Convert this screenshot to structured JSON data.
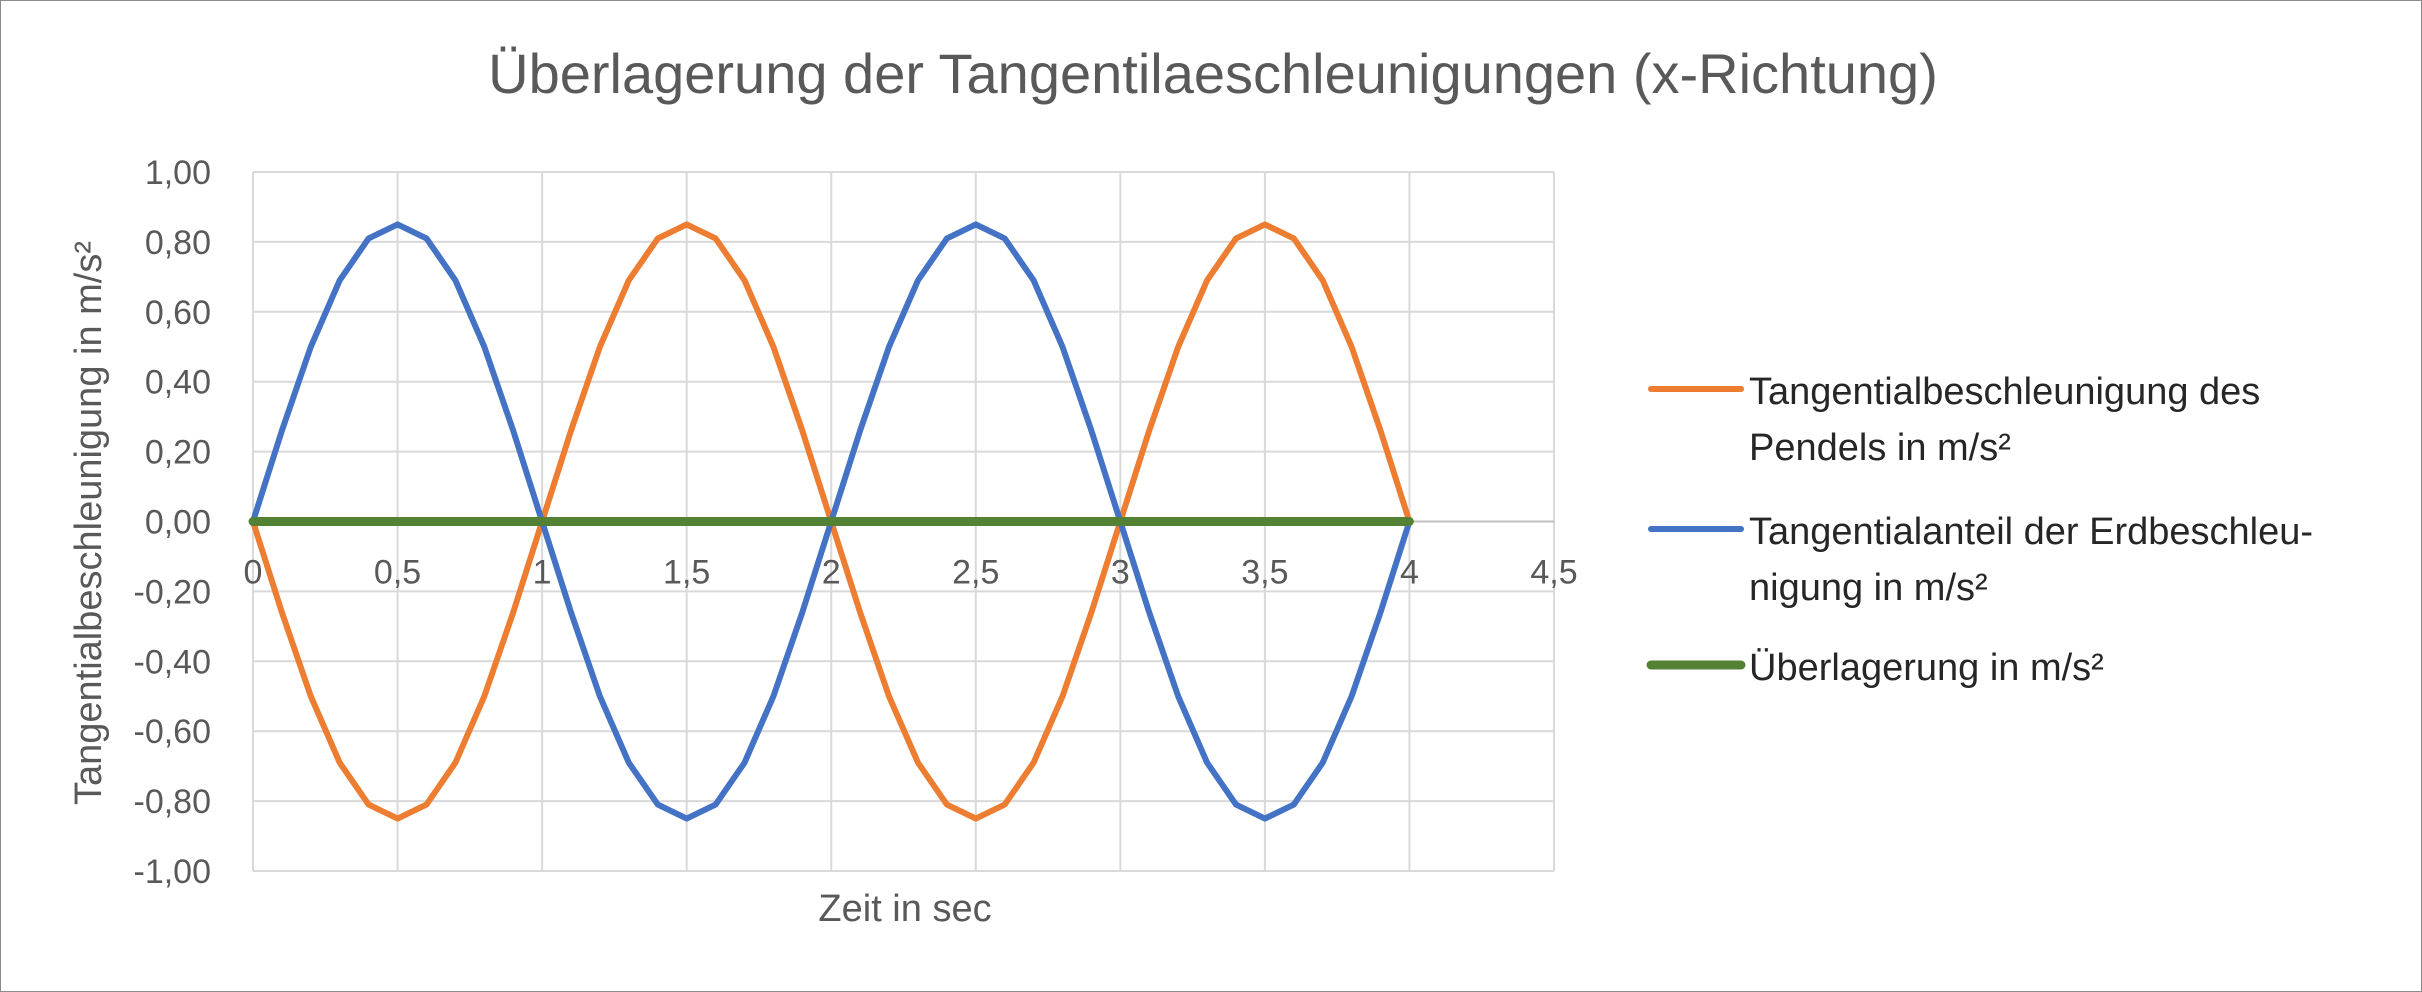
{
  "chart_data": {
    "type": "line",
    "title": "Überlagerung der Tangentilaeschleunigungen (x-Richtung)",
    "xlabel": "Zeit in sec",
    "ylabel": "Tangentialbeschleunigung in m/s²",
    "xlim": [
      0,
      4.5
    ],
    "ylim": [
      -1,
      1
    ],
    "x_ticks": [
      "0",
      "0,5",
      "1",
      "1,5",
      "2",
      "2,5",
      "3",
      "3,5",
      "4",
      "4,5"
    ],
    "y_ticks": [
      "1,00",
      "0,80",
      "0,60",
      "0,40",
      "0,20",
      "0,00",
      "-0,20",
      "-0,40",
      "-0,60",
      "-0,80",
      "-1,00"
    ],
    "grid": true,
    "legend_position": "right",
    "x": [
      0,
      0.1,
      0.2,
      0.3,
      0.4,
      0.5,
      0.6,
      0.7,
      0.8,
      0.9,
      1.0,
      1.1,
      1.2,
      1.3,
      1.4,
      1.5,
      1.6,
      1.7,
      1.8,
      1.9,
      2.0,
      2.1,
      2.2,
      2.3,
      2.4,
      2.5,
      2.6,
      2.7,
      2.8,
      2.9,
      3.0,
      3.1,
      3.2,
      3.3,
      3.4,
      3.5,
      3.6,
      3.7,
      3.8,
      3.9,
      4.0
    ],
    "series": [
      {
        "name_lines": [
          "Tangentialbeschleunigung des",
          "Pendels in m/s²"
        ],
        "color": "#ED7D31",
        "values": [
          0,
          -0.26,
          -0.5,
          -0.69,
          -0.81,
          -0.85,
          -0.81,
          -0.69,
          -0.5,
          -0.26,
          0,
          0.26,
          0.5,
          0.69,
          0.81,
          0.85,
          0.81,
          0.69,
          0.5,
          0.26,
          0,
          -0.26,
          -0.5,
          -0.69,
          -0.81,
          -0.85,
          -0.81,
          -0.69,
          -0.5,
          -0.26,
          0,
          0.26,
          0.5,
          0.69,
          0.81,
          0.85,
          0.81,
          0.69,
          0.5,
          0.26,
          0
        ]
      },
      {
        "name_lines": [
          "Tangentialanteil der Erdbeschleu-",
          "nigung in m/s²"
        ],
        "color": "#4472C4",
        "values": [
          0,
          0.26,
          0.5,
          0.69,
          0.81,
          0.85,
          0.81,
          0.69,
          0.5,
          0.26,
          0,
          -0.26,
          -0.5,
          -0.69,
          -0.81,
          -0.85,
          -0.81,
          -0.69,
          -0.5,
          -0.26,
          0,
          0.26,
          0.5,
          0.69,
          0.81,
          0.85,
          0.81,
          0.69,
          0.5,
          0.26,
          0,
          -0.26,
          -0.5,
          -0.69,
          -0.81,
          -0.85,
          -0.81,
          -0.69,
          -0.5,
          -0.26,
          0
        ]
      },
      {
        "name_lines": [
          "Überlagerung in m/s²"
        ],
        "color": "#548235",
        "values": [
          0,
          0,
          0,
          0,
          0,
          0,
          0,
          0,
          0,
          0,
          0,
          0,
          0,
          0,
          0,
          0,
          0,
          0,
          0,
          0,
          0,
          0,
          0,
          0,
          0,
          0,
          0,
          0,
          0,
          0,
          0,
          0,
          0,
          0,
          0,
          0,
          0,
          0,
          0,
          0,
          0
        ]
      }
    ]
  }
}
